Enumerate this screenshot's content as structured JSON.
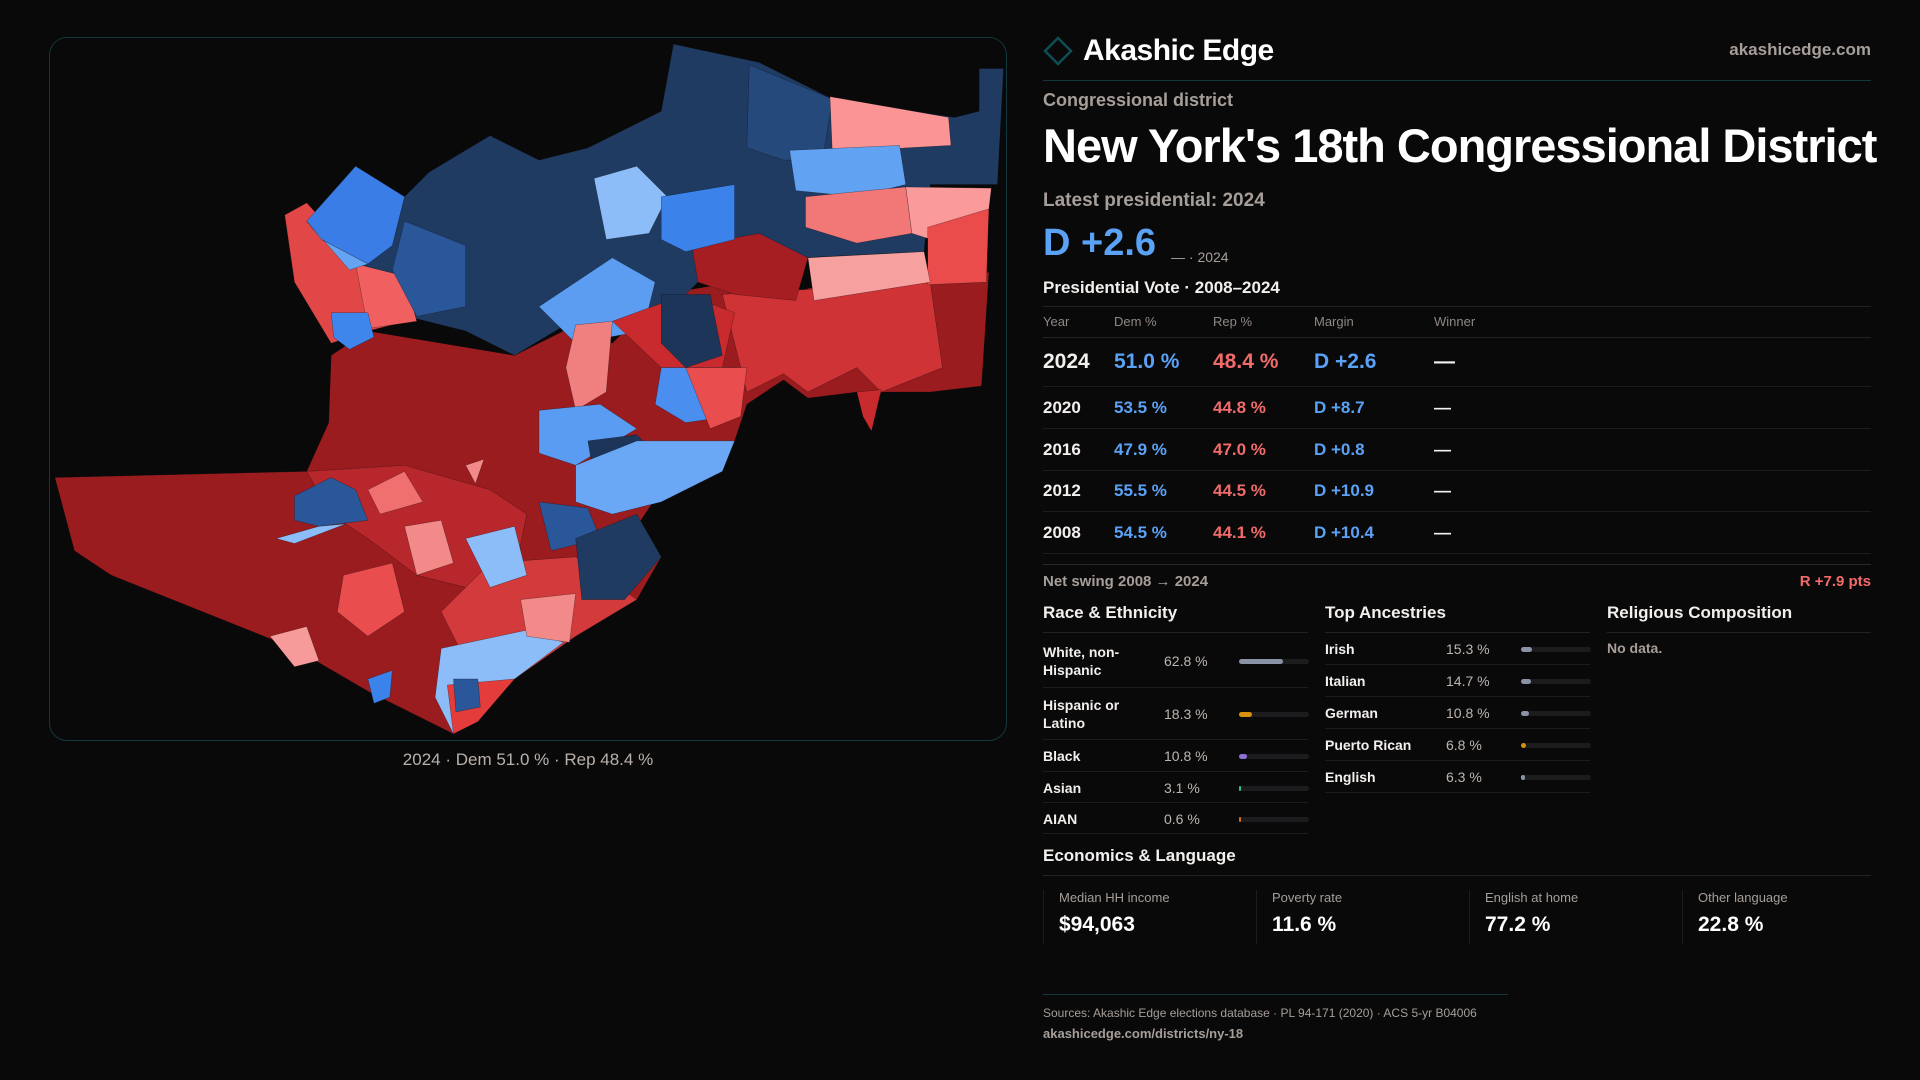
{
  "brand": {
    "name": "Akashic Edge",
    "site": "akashicedge.com",
    "accent": "#0f4d55"
  },
  "colors": {
    "dem": "#5aa2f5",
    "rep": "#f26b6b"
  },
  "map": {
    "caption": "2024 · Dem 51.0 % · Rep 48.4 %"
  },
  "header": {
    "kicker": "Congressional district",
    "title": "New York's  18th Congressional District",
    "latest_label": "Latest presidential: 2024",
    "headline_margin": "D +2.6",
    "headline_note": "— · 2024"
  },
  "vote": {
    "title": "Presidential Vote · 2008–2024",
    "columns": [
      "Year",
      "Dem %",
      "Rep %",
      "Margin",
      "Winner"
    ],
    "rows": [
      {
        "year": "2024",
        "dem": "51.0 %",
        "rep": "48.4 %",
        "margin": "D +2.6",
        "winner": "—"
      },
      {
        "year": "2020",
        "dem": "53.5 %",
        "rep": "44.8 %",
        "margin": "D +8.7",
        "winner": "—"
      },
      {
        "year": "2016",
        "dem": "47.9 %",
        "rep": "47.0 %",
        "margin": "D +0.8",
        "winner": "—"
      },
      {
        "year": "2012",
        "dem": "55.5 %",
        "rep": "44.5 %",
        "margin": "D +10.9",
        "winner": "—"
      },
      {
        "year": "2008",
        "dem": "54.5 %",
        "rep": "44.1 %",
        "margin": "D +10.4",
        "winner": "—"
      }
    ],
    "swing_label": "Net swing 2008 → 2024",
    "swing_value": "R +7.9 pts"
  },
  "race": {
    "title": "Race & Ethnicity",
    "items": [
      {
        "label": "White, non-Hispanic",
        "value": "62.8 %",
        "pct": 62.8,
        "color": "#8a93a6"
      },
      {
        "label": "Hispanic or Latino",
        "value": "18.3 %",
        "pct": 18.3,
        "color": "#d9900f"
      },
      {
        "label": "Black",
        "value": "10.8 %",
        "pct": 10.8,
        "color": "#8e72d8"
      },
      {
        "label": "Asian",
        "value": "3.1 %",
        "pct": 3.1,
        "color": "#2fbf8f"
      },
      {
        "label": "AIAN",
        "value": "0.6 %",
        "pct": 0.6,
        "color": "#d4701a"
      }
    ]
  },
  "ancestry": {
    "title": "Top Ancestries",
    "items": [
      {
        "label": "Irish",
        "value": "15.3 %",
        "pct": 15.3,
        "color": "#8a93a6"
      },
      {
        "label": "Italian",
        "value": "14.7 %",
        "pct": 14.7,
        "color": "#8a93a6"
      },
      {
        "label": "German",
        "value": "10.8 %",
        "pct": 10.8,
        "color": "#8a93a6"
      },
      {
        "label": "Puerto Rican",
        "value": "6.8 %",
        "pct": 6.8,
        "color": "#d9900f"
      },
      {
        "label": "English",
        "value": "6.3 %",
        "pct": 6.3,
        "color": "#8a93a6"
      }
    ]
  },
  "religion": {
    "title": "Religious Composition",
    "empty": "No data."
  },
  "economics": {
    "title": "Economics & Language",
    "stats": [
      {
        "label": "Median HH income",
        "value": "$94,063"
      },
      {
        "label": "Poverty rate",
        "value": "11.6 %"
      },
      {
        "label": "English at home",
        "value": "77.2 %"
      },
      {
        "label": "Other language",
        "value": "22.8 %"
      }
    ]
  },
  "footer": {
    "sources": "Sources: Akashic Edge elections database · PL 94-171 (2020) · ACS 5-yr B04006",
    "url": "akashicedge.com/districts/ny-18"
  }
}
